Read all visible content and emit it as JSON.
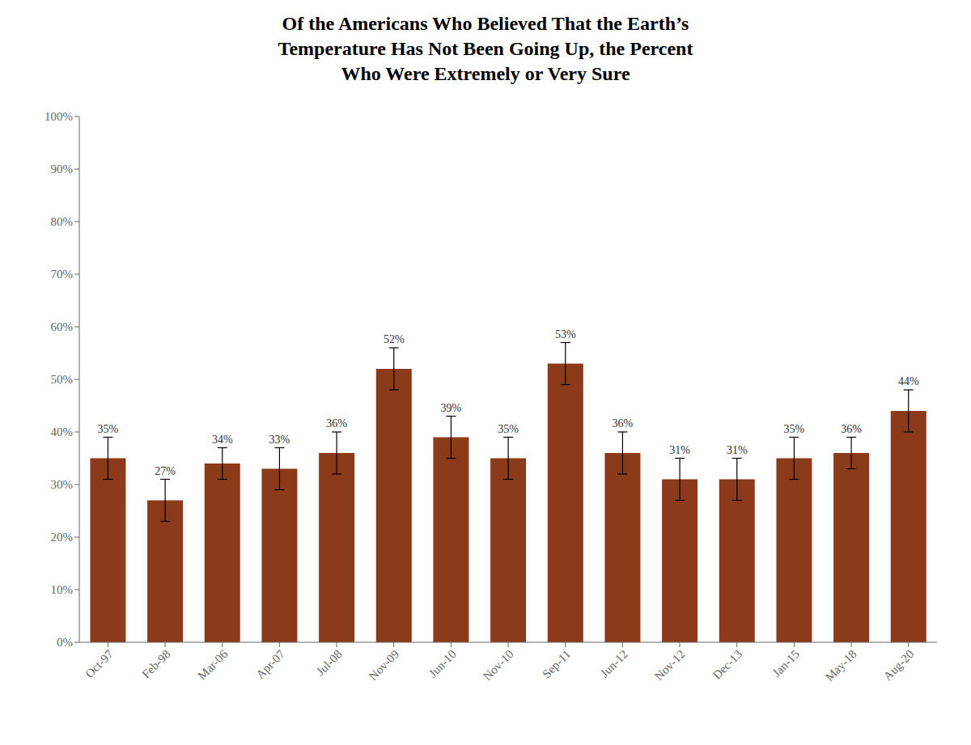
{
  "chart_data": {
    "type": "bar",
    "title": "Of the Americans Who Believed That the Earth’s\nTemperature Has Not Been Going Up, the Percent\nWho Were Extremely or Very Sure",
    "categories": [
      "Oct-97",
      "Feb-98",
      "Mar-06",
      "Apr-07",
      "Jul-08",
      "Nov-09",
      "Jun-10",
      "Nov-10",
      "Sep-11",
      "Jun-12",
      "Nov-12",
      "Dec-13",
      "Jan-15",
      "May-18",
      "Aug-20"
    ],
    "values": [
      35,
      27,
      34,
      33,
      36,
      52,
      39,
      35,
      53,
      36,
      31,
      31,
      35,
      36,
      44
    ],
    "errors": [
      4,
      4,
      3,
      4,
      4,
      4,
      4,
      4,
      4,
      4,
      4,
      4,
      4,
      3,
      4
    ],
    "value_labels": [
      "35%",
      "27%",
      "34%",
      "33%",
      "36%",
      "52%",
      "39%",
      "35%",
      "53%",
      "36%",
      "31%",
      "31%",
      "35%",
      "36%",
      "44%"
    ],
    "data_labels": true,
    "color": "#8B3A1A",
    "ylim": [
      0,
      100
    ],
    "yticks": [
      {
        "value": 0,
        "label": "0%"
      },
      {
        "value": 10,
        "label": "10%"
      },
      {
        "value": 20,
        "label": "20%"
      },
      {
        "value": 30,
        "label": "30%"
      },
      {
        "value": 40,
        "label": "40%"
      },
      {
        "value": 50,
        "label": "50%"
      },
      {
        "value": 60,
        "label": "60%"
      },
      {
        "value": 70,
        "label": "70%"
      },
      {
        "value": 80,
        "label": "80%"
      },
      {
        "value": 90,
        "label": "90%"
      },
      {
        "value": 100,
        "label": "100%"
      }
    ],
    "grid": false
  }
}
